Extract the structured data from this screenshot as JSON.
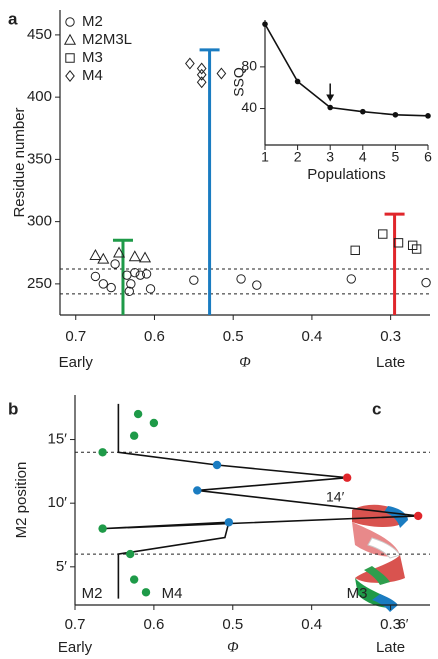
{
  "chart_data": [
    {
      "type": "scatter",
      "panel": "a",
      "y_label": "Residue number",
      "x_label": "Φ",
      "x_annotations": [
        "Early",
        "Late"
      ],
      "xlim": [
        0.72,
        0.25
      ],
      "ylim": [
        225,
        470
      ],
      "xticks": [
        0.7,
        0.6,
        0.5,
        0.4,
        0.3
      ],
      "yticks": [
        250,
        300,
        350,
        400,
        450
      ],
      "series": [
        {
          "name": "M2",
          "marker": "circle",
          "color": "#222222",
          "x": [
            0.675,
            0.665,
            0.655,
            0.65,
            0.635,
            0.63,
            0.625,
            0.618,
            0.61,
            0.605,
            0.632,
            0.55,
            0.49,
            0.47,
            0.35,
            0.255
          ],
          "y": [
            256,
            250,
            247,
            266,
            257,
            250,
            259,
            257,
            258,
            246,
            244,
            253,
            254,
            249,
            254,
            251
          ]
        },
        {
          "name": "M2M3L",
          "marker": "triangle",
          "color": "#222222",
          "x": [
            0.675,
            0.665,
            0.645,
            0.625,
            0.612
          ],
          "y": [
            273,
            270,
            275,
            272,
            271
          ]
        },
        {
          "name": "M3",
          "marker": "square",
          "color": "#222222",
          "x": [
            0.345,
            0.31,
            0.29,
            0.272,
            0.267
          ],
          "y": [
            277,
            290,
            283,
            281,
            278
          ]
        },
        {
          "name": "M4",
          "marker": "diamond",
          "color": "#222222",
          "x": [
            0.555,
            0.54,
            0.54,
            0.54,
            0.515
          ],
          "y": [
            427,
            423,
            418,
            412,
            419
          ]
        }
      ],
      "population_lines": [
        {
          "color": "#1e9a48",
          "x": 0.64,
          "top": 285
        },
        {
          "color": "#1a7cc1",
          "x": 0.53,
          "top": 438
        },
        {
          "color": "#e0262b",
          "x": 0.295,
          "top": 306
        }
      ],
      "hlines": [
        262,
        242
      ]
    },
    {
      "type": "line",
      "y_label": "SSQ",
      "x_label": "Populations",
      "x": [
        1,
        2,
        3,
        4,
        5,
        6
      ],
      "values": [
        121,
        66,
        41,
        37,
        34,
        33
      ],
      "color": "#111111",
      "xlim": [
        1,
        6
      ],
      "ylim": [
        5,
        125
      ],
      "xticks": [
        1,
        2,
        3,
        4,
        5,
        6
      ],
      "yticks": [
        40,
        80
      ],
      "arrow_at": 3
    },
    {
      "type": "scatter",
      "panel": "b",
      "y_label": "M2 position",
      "x_label": "Φ",
      "x_annotations": [
        "Early",
        "Late"
      ],
      "xlim": [
        0.7,
        0.25
      ],
      "ylim": [
        2,
        18.5
      ],
      "xticks": [
        0.7,
        0.6,
        0.5,
        0.4,
        0.3
      ],
      "yticks": [
        {
          "value": 5,
          "label": "5′"
        },
        {
          "value": 10,
          "label": "10′"
        },
        {
          "value": 15,
          "label": "15′"
        }
      ],
      "points": {
        "x": [
          0.6,
          0.62,
          0.625,
          0.665,
          0.52,
          0.355,
          0.545,
          0.265,
          0.505,
          0.665,
          0.63,
          0.625,
          0.61
        ],
        "y": [
          16.3,
          17,
          15.3,
          14,
          13,
          12,
          11,
          9,
          8.5,
          8,
          6,
          4,
          3
        ],
        "colors": [
          "#1e9a48",
          "#1e9a48",
          "#1e9a48",
          "#1e9a48",
          "#1a7cc1",
          "#e0262b",
          "#1a7cc1",
          "#e0262b",
          "#1a7cc1",
          "#1e9a48",
          "#1e9a48",
          "#1e9a48",
          "#1e9a48"
        ]
      },
      "line": {
        "x": [
          0.645,
          0.645,
          0.52,
          0.355,
          0.545,
          0.265,
          0.665,
          0.505,
          0.51,
          0.645,
          0.645
        ],
        "y": [
          17.8,
          14,
          13,
          12,
          11,
          9,
          8,
          8.5,
          7.3,
          6,
          2.5
        ]
      },
      "hlines": [
        14,
        6
      ],
      "annotations": [
        "M2",
        "M4",
        "M3"
      ]
    }
  ],
  "panel_c": {
    "label": "c",
    "labels": [
      "14′",
      "6′"
    ]
  }
}
